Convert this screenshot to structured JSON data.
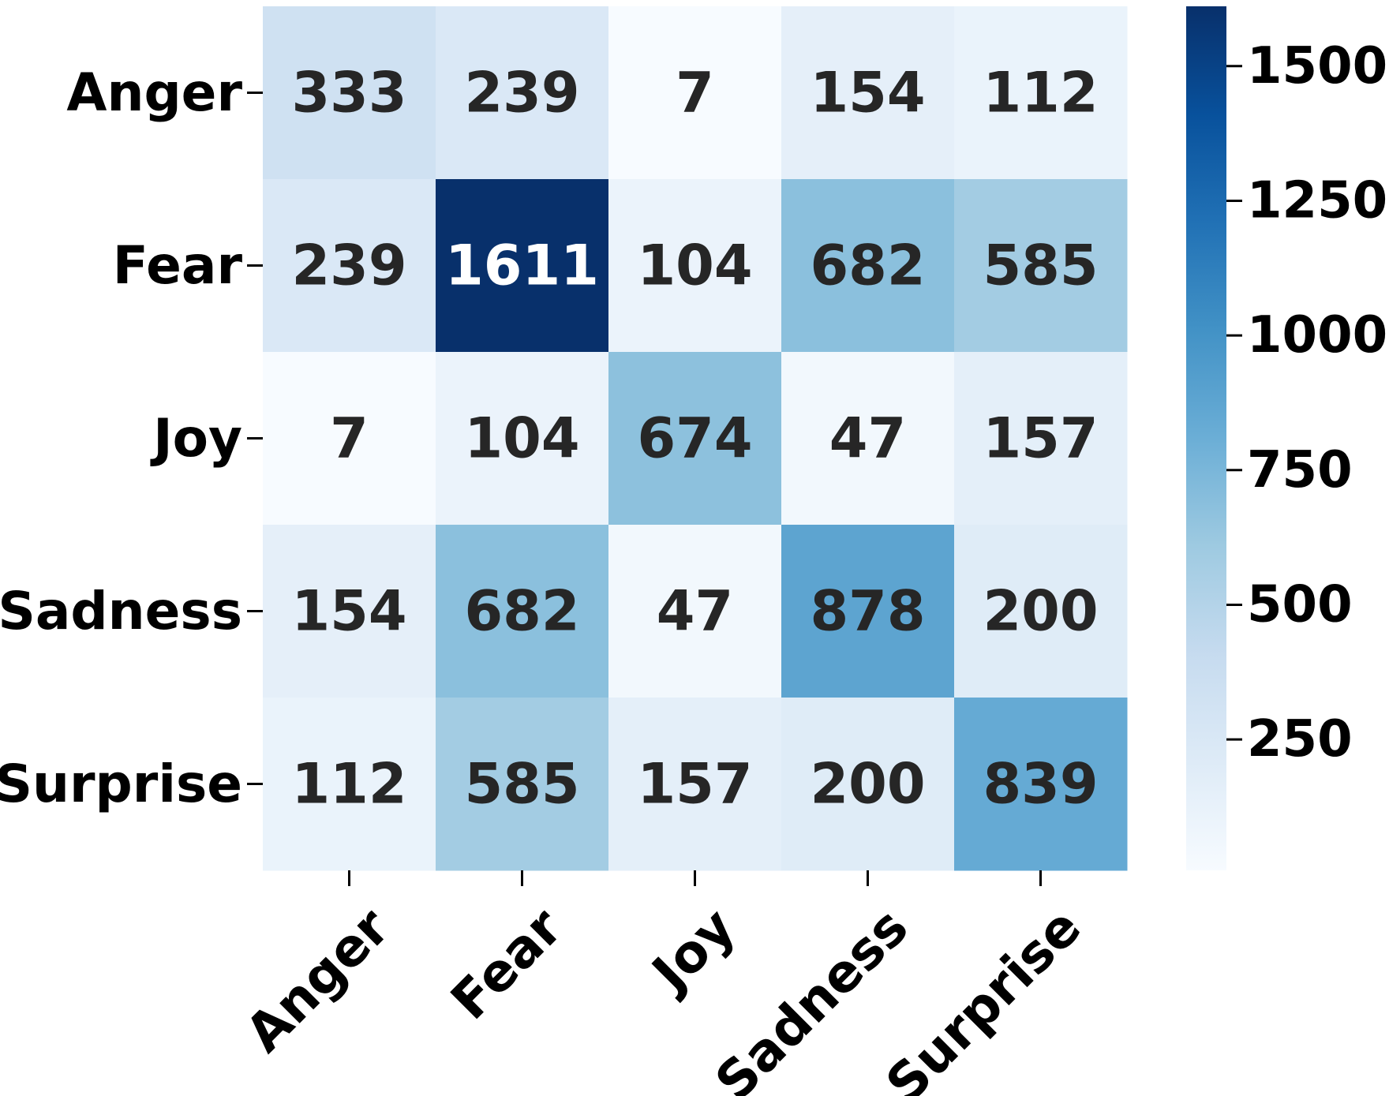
{
  "chart_data": {
    "type": "heatmap",
    "title": "",
    "xlabel": "",
    "ylabel": "",
    "x_categories": [
      "Anger",
      "Fear",
      "Joy",
      "Sadness",
      "Surprise"
    ],
    "y_categories": [
      "Anger",
      "Fear",
      "Joy",
      "Sadness",
      "Surprise"
    ],
    "values": [
      [
        333,
        239,
        7,
        154,
        112
      ],
      [
        239,
        1611,
        104,
        682,
        585
      ],
      [
        7,
        104,
        674,
        47,
        157
      ],
      [
        154,
        682,
        47,
        878,
        200
      ],
      [
        112,
        585,
        157,
        200,
        839
      ]
    ],
    "colormap": "Blues",
    "colorbar": {
      "range": [
        7,
        1611
      ],
      "ticks": [
        250,
        500,
        750,
        1000,
        1250,
        1500
      ],
      "tick_labels": [
        "250",
        "500",
        "750",
        "1000",
        "1250",
        "1500"
      ]
    },
    "grid": false,
    "text_color_dark": "#262626",
    "text_color_light": "#ffffff",
    "label_rotation": 45
  }
}
